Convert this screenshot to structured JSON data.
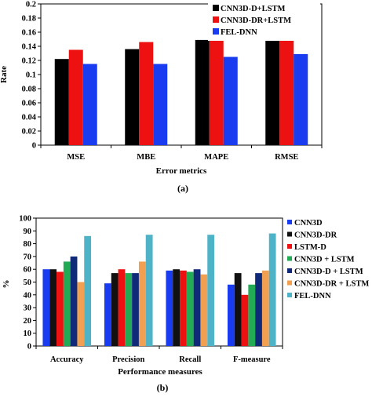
{
  "chart_data": [
    {
      "type": "bar",
      "panel_label": "(a)",
      "categories": [
        "MSE",
        "MBE",
        "MAPE",
        "RMSE"
      ],
      "xlabel": "Error metrics",
      "ylabel": "Rate",
      "ylim": [
        0,
        0.2
      ],
      "yticks": [
        "0",
        "0.02",
        "0.04",
        "0.06",
        "0.08",
        "0.1",
        "0.12",
        "0.14",
        "0.16",
        "0.18",
        "0.2"
      ],
      "grid": false,
      "legend_placement": "top-right",
      "series": [
        {
          "name": "CNN3D-D+LSTM",
          "color": "#000000",
          "values": [
            0.122,
            0.136,
            0.149,
            0.153
          ]
        },
        {
          "name": "CNN3D-DR+LSTM",
          "color": "#ee1111",
          "values": [
            0.135,
            0.146,
            0.151,
            0.162
          ]
        },
        {
          "name": "FEL-DNN",
          "color": "#1a3cf0",
          "values": [
            0.115,
            0.115,
            0.125,
            0.129
          ]
        }
      ]
    },
    {
      "type": "bar",
      "panel_label": "(b)",
      "categories": [
        "Accuracy",
        "Precision",
        "Recall",
        "F-measure"
      ],
      "xlabel": "Performance measures",
      "ylabel": "%",
      "ylim": [
        0,
        100
      ],
      "yticks": [
        "0",
        "10",
        "20",
        "30",
        "40",
        "50",
        "60",
        "70",
        "80",
        "90",
        "100"
      ],
      "grid": false,
      "legend_placement": "right",
      "series": [
        {
          "name": "CNN3D",
          "color": "#1a3cf0",
          "values": [
            60,
            49,
            59,
            48
          ]
        },
        {
          "name": "CNN3D-DR",
          "color": "#111111",
          "values": [
            60,
            57,
            60,
            57
          ]
        },
        {
          "name": "LSTM-D",
          "color": "#ee1111",
          "values": [
            58,
            60,
            59,
            40
          ]
        },
        {
          "name": "CNN3D + LSTM",
          "color": "#22aa55",
          "values": [
            66,
            57,
            58,
            48
          ]
        },
        {
          "name": "CNN3D-D + LSTM",
          "color": "#102a7a",
          "values": [
            70,
            57,
            60,
            57
          ]
        },
        {
          "name": "CNN3D-DR + LSTM",
          "color": "#f0a050",
          "values": [
            50,
            66,
            56,
            59
          ]
        },
        {
          "name": "FEL-DNN",
          "color": "#4fb3c8",
          "values": [
            86,
            87,
            87,
            88
          ]
        }
      ]
    }
  ]
}
